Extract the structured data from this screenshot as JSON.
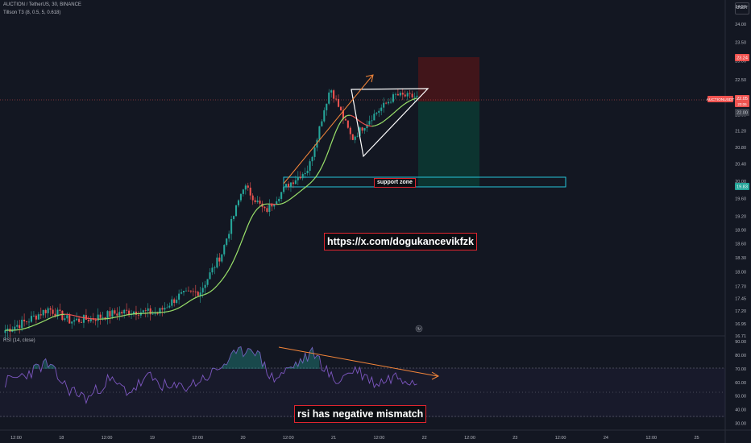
{
  "header": {
    "symbol_line": "AUCTION / TetherUS, 30, BINANCE",
    "indicator_line": "Tillson T3 (8, 0.5, 5, 0.618)",
    "currency_badge": "USDT",
    "rsi_label": "RSI (14, close)"
  },
  "price_labels": {
    "current_tag": "AUCTIONUSDT",
    "current_price": "22.05",
    "current_sub": "20:06",
    "stop_level": "23.24",
    "mid_level": "22.00",
    "target_level": "19.83"
  },
  "annotations": {
    "support_zone": "support zone",
    "link": "https://x.com/dogukancevikfzk",
    "rsi_note": "rsi has negative mismatch"
  },
  "colors": {
    "background": "#131722",
    "up_candle": "#26a69a",
    "down_candle": "#ef5350",
    "t3_rising": "#9be36b",
    "t3_falling": "#ef5350",
    "rsi_line": "#7e57c2",
    "annotation": "#e0252f",
    "support_box": "#26c6da",
    "trend_arrow": "#f7873a"
  },
  "chart_data": [
    {
      "type": "candlestick",
      "title": "AUCTION / TetherUS, 30, BINANCE",
      "x_ticks": [
        "12:00",
        "18",
        "12:00",
        "19",
        "12:00",
        "20",
        "12:00",
        "21",
        "12:00",
        "22",
        "12:00",
        "23",
        "12:00",
        "24",
        "12:00",
        "25"
      ],
      "y_ticks": [
        16.71,
        16.95,
        17.2,
        17.45,
        17.7,
        18.0,
        18.3,
        18.6,
        18.9,
        19.2,
        19.6,
        20.0,
        20.4,
        20.8,
        21.2,
        21.6,
        22.0,
        22.5,
        23.0,
        23.5,
        24.0,
        24.5
      ],
      "ylim": [
        16.71,
        24.5
      ],
      "scale": "log",
      "grid": false,
      "series_close": [
        {
          "x": "17 12:00",
          "close": 16.82
        },
        {
          "x": "18 00:00",
          "close": 17.0
        },
        {
          "x": "18 06:00",
          "close": 17.25
        },
        {
          "x": "18 12:00",
          "close": 17.0
        },
        {
          "x": "18 18:00",
          "close": 17.05
        },
        {
          "x": "19 00:00",
          "close": 17.15
        },
        {
          "x": "19 06:00",
          "close": 17.2
        },
        {
          "x": "19 12:00",
          "close": 17.15
        },
        {
          "x": "19 18:00",
          "close": 17.5
        },
        {
          "x": "20 00:00",
          "close": 17.6
        },
        {
          "x": "20 06:00",
          "close": 18.4
        },
        {
          "x": "20 12:00",
          "close": 19.9
        },
        {
          "x": "20 15:00",
          "close": 19.3
        },
        {
          "x": "20 18:00",
          "close": 19.9
        },
        {
          "x": "21 00:00",
          "close": 20.3
        },
        {
          "x": "21 06:00",
          "close": 22.3
        },
        {
          "x": "21 09:00",
          "close": 21.0
        },
        {
          "x": "21 12:00",
          "close": 21.6
        },
        {
          "x": "21 18:00",
          "close": 22.1
        },
        {
          "x": "22 00:00",
          "close": 22.05
        }
      ],
      "position": {
        "entry": 22.05,
        "stop": 23.24,
        "target": 19.83
      }
    },
    {
      "type": "line",
      "title": "RSI (14, close)",
      "y_ticks": [
        30.0,
        40.0,
        50.0,
        60.0,
        70.0,
        80.0,
        90.0
      ],
      "ylim": [
        25,
        93
      ],
      "bands": [
        30,
        50,
        70
      ],
      "values": [
        60,
        66,
        74,
        56,
        48,
        62,
        53,
        64,
        55,
        58,
        66,
        78,
        87,
        62,
        72,
        82,
        60,
        70,
        59,
        65,
        61
      ]
    }
  ]
}
